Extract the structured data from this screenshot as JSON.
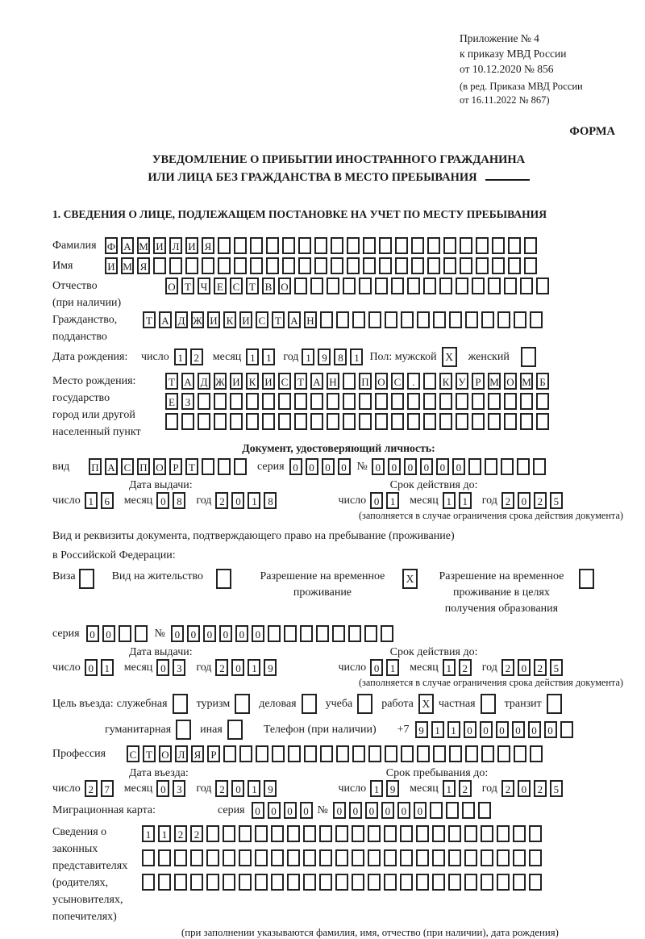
{
  "colors": {
    "ink": "#1a1a1a",
    "box_border": "#222222"
  },
  "header": {
    "line1": "Приложение № 4",
    "line2": "к приказу МВД России",
    "line3": "от 10.12.2020 № 856",
    "note1": "(в ред. Приказа МВД России",
    "note2": "от 16.11.2022 № 867)",
    "forma": "ФОРМА"
  },
  "title": {
    "line1": "УВЕДОМЛЕНИЕ О ПРИБЫТИИ ИНОСТРАННОГО ГРАЖДАНИНА",
    "line2": "ИЛИ ЛИЦА БЕЗ ГРАЖДАНСТВА В МЕСТО ПРЕБЫВАНИЯ"
  },
  "section1_heading": "1. СВЕДЕНИЯ О ЛИЦЕ, ПОДЛЕЖАЩЕМ ПОСТАНОВКЕ НА УЧЕТ ПО МЕСТУ ПРЕБЫВАНИЯ",
  "person": {
    "surname": {
      "label": "Фамилия",
      "cells": {
        "value": "ФАМИЛИЯ",
        "len": 27
      }
    },
    "firstname": {
      "label": "Имя",
      "cells": {
        "value": "ИМЯ",
        "len": 27
      }
    },
    "patronymic": {
      "label": "Отчество",
      "label2": "(при наличии)",
      "cells": {
        "value": "ОТЧЕСТВО",
        "len": 24
      }
    },
    "citizenship": {
      "label": "Гражданство,",
      "label2": "подданство",
      "cells": {
        "value": "ТАДЖИКИСТАН",
        "len": 25
      }
    }
  },
  "birth": {
    "label": "Дата рождения:",
    "day_label": "число",
    "day": {
      "value": "12",
      "len": 2
    },
    "month_label": "месяц",
    "month": {
      "value": "11",
      "len": 2
    },
    "year_label": "год",
    "year": {
      "value": "1981",
      "len": 4
    },
    "sex_label": "Пол: мужской",
    "male_mark": "X",
    "female_label": "женский",
    "female_mark": ""
  },
  "birthplace": {
    "label1": "Место рождения:",
    "label2": "государство",
    "label3": "город или другой",
    "label4": "населенный пункт",
    "row1": {
      "value": "ТАДЖИКИСТАН ПОС. КУРМОМБ",
      "len": 24
    },
    "row2": {
      "value": "ЕЗ",
      "len": 24
    },
    "row3": {
      "value": "",
      "len": 24
    }
  },
  "identity_doc": {
    "heading": "Документ, удостоверяющий личность:",
    "type_label": "вид",
    "type_cells": {
      "value": "ПАСПОРТ",
      "len": 10
    },
    "series_label": "серия",
    "series_cells": {
      "value": "0000",
      "len": 4
    },
    "number_label": "№",
    "number_cells": {
      "value": "000000",
      "len": 11
    },
    "issue_heading": "Дата выдачи:",
    "valid_heading": "Срок действия до:",
    "issue": {
      "day_label": "число",
      "day": {
        "value": "16",
        "len": 2
      },
      "month_label": "месяц",
      "month": {
        "value": "08",
        "len": 2
      },
      "year_label": "год",
      "year": {
        "value": "2018",
        "len": 4
      }
    },
    "valid": {
      "day_label": "число",
      "day": {
        "value": "01",
        "len": 2
      },
      "month_label": "месяц",
      "month": {
        "value": "11",
        "len": 2
      },
      "year_label": "год",
      "year": {
        "value": "2025",
        "len": 4
      }
    },
    "note": "(заполняется в случае ограничения срока действия документа)"
  },
  "residence_doc": {
    "intro1": "Вид и реквизиты документа, подтверждающего право на пребывание (проживание)",
    "intro2": "в Российской Федерации:",
    "opt1": {
      "label": "Виза",
      "mark": ""
    },
    "opt2": {
      "label": "Вид на жительство",
      "mark": ""
    },
    "opt3": {
      "label": "Разрешение на временное проживание",
      "mark": "X"
    },
    "opt4": {
      "label": "Разрешение на временное проживание в целях получения образования",
      "mark": ""
    },
    "series_label": "серия",
    "series_cells": {
      "value": "00",
      "len": 4
    },
    "number_label": "№",
    "number_cells": {
      "value": "000000",
      "len": 14
    },
    "issue_heading": "Дата выдачи:",
    "valid_heading": "Срок действия до:",
    "issue": {
      "day_label": "число",
      "day": {
        "value": "01",
        "len": 2
      },
      "month_label": "месяц",
      "month": {
        "value": "03",
        "len": 2
      },
      "year_label": "год",
      "year": {
        "value": "2019",
        "len": 4
      }
    },
    "valid": {
      "day_label": "число",
      "day": {
        "value": "01",
        "len": 2
      },
      "month_label": "месяц",
      "month": {
        "value": "12",
        "len": 2
      },
      "year_label": "год",
      "year": {
        "value": "2025",
        "len": 4
      }
    },
    "note": "(заполняется в случае ограничения срока действия документа)"
  },
  "visit": {
    "label": "Цель въезда:",
    "opt_sluzhebnaya": {
      "label": "служебная",
      "mark": ""
    },
    "opt_turizm": {
      "label": "туризм",
      "mark": ""
    },
    "opt_delovaya": {
      "label": "деловая",
      "mark": ""
    },
    "opt_ucheba": {
      "label": "учеба",
      "mark": ""
    },
    "opt_rabota": {
      "label": "работа",
      "mark": "X"
    },
    "opt_chastnaya": {
      "label": "частная",
      "mark": ""
    },
    "opt_tranzit": {
      "label": "транзит",
      "mark": ""
    },
    "opt_gumanitarnaya": {
      "label": "гуманитарная",
      "mark": ""
    },
    "opt_inaya": {
      "label": "иная",
      "mark": ""
    },
    "phone_label": "Телефон (при наличии)",
    "phone_prefix": "+7",
    "phone_cells": {
      "value": "911000000",
      "len": 10
    },
    "profession_label": "Профессия",
    "profession_cells": {
      "value": "СТОЛЯР",
      "len": 26
    }
  },
  "entry": {
    "entry_heading": "Дата въезда:",
    "stay_heading": "Срок пребывания до:",
    "entry_date": {
      "day_label": "число",
      "day": {
        "value": "27",
        "len": 2
      },
      "month_label": "месяц",
      "month": {
        "value": "03",
        "len": 2
      },
      "year_label": "год",
      "year": {
        "value": "2019",
        "len": 4
      }
    },
    "stay_date": {
      "day_label": "число",
      "day": {
        "value": "19",
        "len": 2
      },
      "month_label": "месяц",
      "month": {
        "value": "12",
        "len": 2
      },
      "year_label": "год",
      "year": {
        "value": "2025",
        "len": 4
      }
    }
  },
  "migration_card": {
    "label": "Миграционная карта:",
    "series_label": "серия",
    "series_cells": {
      "value": "0000",
      "len": 4
    },
    "number_label": "№",
    "number_cells": {
      "value": "000000",
      "len": 10
    }
  },
  "representatives": {
    "label1": "Сведения о",
    "label2": "законных",
    "label3": "представителях",
    "label4": "(родителях,",
    "label5": "усыновителях,",
    "label6": "попечителях)",
    "row1": {
      "value": "1122",
      "len": 25
    },
    "row2": {
      "value": "",
      "len": 25
    },
    "row3": {
      "value": "",
      "len": 25
    },
    "note": "(при заполнении указываются фамилия, имя, отчество (при наличии), дата рождения)"
  }
}
